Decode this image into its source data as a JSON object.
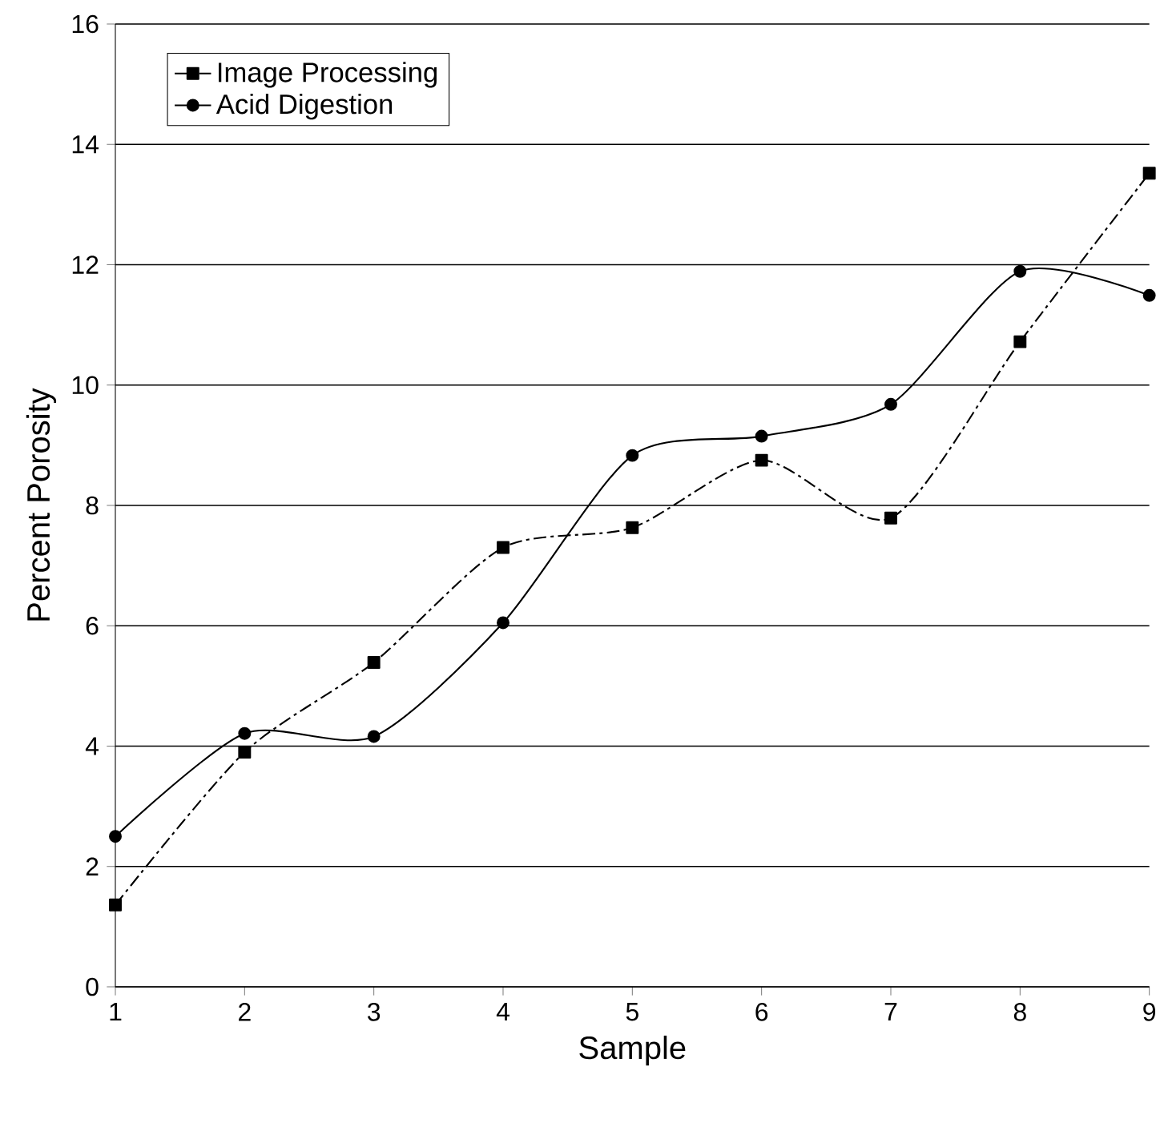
{
  "chart_data": {
    "type": "line",
    "xlabel": "Sample",
    "ylabel": "Percent Porosity",
    "x": [
      1,
      2,
      3,
      4,
      5,
      6,
      7,
      8,
      9
    ],
    "series": [
      {
        "name": "Image Processing",
        "color": "#000000",
        "marker": "square",
        "line_style": "dashdot",
        "values": [
          1.36,
          3.9,
          5.39,
          7.3,
          7.63,
          8.75,
          7.79,
          10.72,
          13.52
        ]
      },
      {
        "name": "Acid Digestion",
        "color": "#000000",
        "marker": "circle",
        "line_style": "solid",
        "values": [
          2.5,
          4.21,
          4.16,
          6.05,
          8.83,
          9.15,
          9.68,
          11.89,
          11.49
        ]
      }
    ],
    "xlim": [
      1,
      9
    ],
    "xticks": [
      1,
      2,
      3,
      4,
      5,
      6,
      7,
      8,
      9
    ],
    "ylim": [
      0,
      16
    ],
    "yticks": [
      0,
      2,
      4,
      6,
      8,
      10,
      12,
      14,
      16
    ],
    "grid": "y",
    "legend": "top left"
  }
}
